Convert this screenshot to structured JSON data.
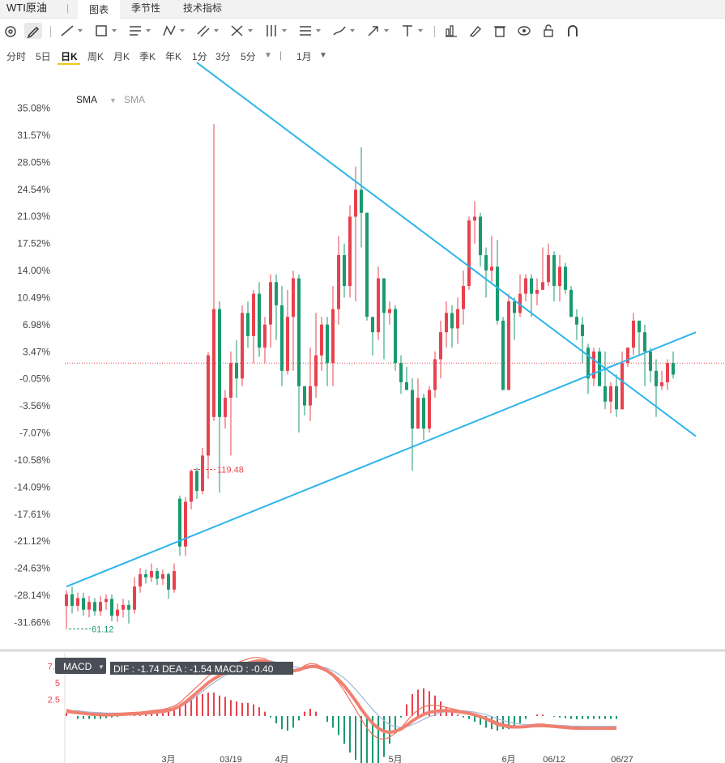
{
  "header": {
    "symbol": "WTI原油",
    "separator": "|",
    "tabs": [
      {
        "label": "图表",
        "active": true
      },
      {
        "label": "季节性",
        "active": false
      },
      {
        "label": "技术指标",
        "active": false
      }
    ]
  },
  "toolbar": {
    "tools": [
      "cursor-icon",
      "pencil-icon",
      "trend-line-icon",
      "rectangle-icon",
      "horizontal-lines-icon",
      "zigzag-icon",
      "parallel-channel-icon",
      "fork-icon",
      "vertical-lines-icon",
      "fib-levels-icon",
      "brush-icon",
      "arrow-icon",
      "text-icon",
      "bar-chart-icon",
      "edit-icon",
      "trash-icon",
      "eye-icon",
      "lock-icon",
      "magnet-icon"
    ]
  },
  "periods": {
    "items": [
      "分时",
      "5日",
      "日K",
      "周K",
      "月K",
      "季K",
      "年K",
      "1分",
      "3分",
      "5分"
    ],
    "active": "日K",
    "extra": "1月"
  },
  "indicator": {
    "sma_label": "SMA",
    "sma_secondary": "SMA"
  },
  "macd_panel": {
    "label": "MACD",
    "readout": "DIF : -1.74  DEA : -1.54  MACD : -0.40",
    "y_ticks": [
      "7.5",
      "5",
      "2.5"
    ],
    "colors": {
      "positive": "#e8424e",
      "negative": "#1a9a6e",
      "dif": "#f07060",
      "dea": "#a0b8d8",
      "thick": "#f08070"
    }
  },
  "chart_data": {
    "type": "candlestick",
    "y_axis_unit": "%",
    "y_ticks": [
      "35.08%",
      "31.57%",
      "28.05%",
      "24.54%",
      "21.03%",
      "17.52%",
      "14.00%",
      "10.49%",
      "6.98%",
      "3.47%",
      "-0.05%",
      "-3.56%",
      "-7.07%",
      "-10.58%",
      "-14.09%",
      "-17.61%",
      "-21.12%",
      "-24.63%",
      "-28.14%",
      "-31.66%"
    ],
    "ylim": [
      -33.6,
      39.0
    ],
    "x_labels": [
      {
        "label": "3月",
        "index": 18
      },
      {
        "label": "03/19",
        "index": 29
      },
      {
        "label": "4月",
        "index": 38
      },
      {
        "label": "5月",
        "index": 58
      },
      {
        "label": "6月",
        "index": 78
      },
      {
        "label": "06/12",
        "index": 86
      },
      {
        "label": "06/27",
        "index": 98
      }
    ],
    "max_label": {
      "text": "119.48",
      "index": 22
    },
    "min_label": {
      "text": "61.12",
      "index": 0
    },
    "reference_line_pct": 2.0,
    "trendlines": [
      {
        "from": [
          23,
          41.0
        ],
        "to": [
          111,
          -7.5
        ],
        "color": "#2eb5ec"
      },
      {
        "from": [
          0,
          -27.0
        ],
        "to": [
          111,
          6.0
        ],
        "color": "#2eb5ec"
      }
    ],
    "colors": {
      "up": "#e8424e",
      "down": "#1a9a6e"
    },
    "candles": [
      [
        -29.5,
        -28.0,
        -27.5,
        -32.5
      ],
      [
        -28.0,
        -29.5,
        -27.0,
        -30.5
      ],
      [
        -29.5,
        -28.5,
        -27.8,
        -30.2
      ],
      [
        -28.5,
        -30.0,
        -27.8,
        -30.8
      ],
      [
        -30.0,
        -29.0,
        -28.2,
        -31.0
      ],
      [
        -29.0,
        -30.2,
        -28.5,
        -30.8
      ],
      [
        -30.2,
        -29.0,
        -28.2,
        -30.8
      ],
      [
        -29.0,
        -28.6,
        -28.0,
        -30.0
      ],
      [
        -28.6,
        -30.8,
        -28.0,
        -31.5
      ],
      [
        -30.8,
        -30.0,
        -29.2,
        -31.6
      ],
      [
        -30.0,
        -29.4,
        -28.6,
        -31.0
      ],
      [
        -29.4,
        -30.0,
        -28.8,
        -31.8
      ],
      [
        -30.0,
        -27.0,
        -25.8,
        -30.5
      ],
      [
        -27.0,
        -25.4,
        -24.6,
        -27.8
      ],
      [
        -25.4,
        -25.8,
        -24.8,
        -26.6
      ],
      [
        -25.8,
        -25.0,
        -24.0,
        -26.4
      ],
      [
        -25.0,
        -26.0,
        -24.6,
        -26.8
      ],
      [
        -26.0,
        -25.4,
        -24.8,
        -26.8
      ],
      [
        -25.4,
        -27.4,
        -25.2,
        -28.6
      ],
      [
        -27.4,
        -25.0,
        -24.0,
        -27.8
      ],
      [
        -15.6,
        -21.8,
        -15.2,
        -23.0
      ],
      [
        -21.8,
        -16.0,
        -15.4,
        -23.0
      ],
      [
        -16.0,
        -12.0,
        -11.8,
        -17.0
      ],
      [
        -12.0,
        -14.6,
        -11.6,
        -15.6
      ],
      [
        -14.6,
        -10.0,
        -9.0,
        -15.0
      ],
      [
        -10.0,
        3.0,
        3.4,
        -13.0
      ],
      [
        -5.0,
        9.0,
        33.0,
        -5.5
      ],
      [
        9.0,
        -5.0,
        10.0,
        -14.8
      ],
      [
        -5.0,
        -2.5,
        -1.5,
        -6.5
      ],
      [
        -2.5,
        2.0,
        3.5,
        -10.0
      ],
      [
        2.0,
        0.0,
        5.0,
        -2.5
      ],
      [
        0.0,
        8.5,
        9.5,
        -1.0
      ],
      [
        8.5,
        5.5,
        10.0,
        4.0
      ],
      [
        5.5,
        11.0,
        11.5,
        2.0
      ],
      [
        11.0,
        4.0,
        12.5,
        2.8
      ],
      [
        4.0,
        7.0,
        8.0,
        2.0
      ],
      [
        7.0,
        12.5,
        13.5,
        4.0
      ],
      [
        12.5,
        9.5,
        13.5,
        5.0
      ],
      [
        9.5,
        1.0,
        12.0,
        -1.0
      ],
      [
        1.0,
        8.0,
        11.5,
        0.5
      ],
      [
        8.0,
        13.0,
        14.0,
        1.0
      ],
      [
        13.0,
        -1.0,
        13.5,
        -7.0
      ],
      [
        -1.0,
        -3.5,
        -1.0,
        -4.8
      ],
      [
        -3.5,
        -1.0,
        4.0,
        -5.5
      ],
      [
        -1.0,
        3.0,
        8.5,
        -2.5
      ],
      [
        3.0,
        7.0,
        8.0,
        1.0
      ],
      [
        7.0,
        2.0,
        8.0,
        -1.0
      ],
      [
        2.0,
        9.0,
        12.0,
        -1.0
      ],
      [
        9.0,
        16.0,
        18.5,
        7.0
      ],
      [
        16.0,
        12.0,
        17.5,
        10.5
      ],
      [
        12.0,
        21.0,
        22.5,
        10.5
      ],
      [
        21.0,
        24.5,
        27.5,
        10.0
      ],
      [
        24.5,
        21.5,
        30.0,
        17.0
      ],
      [
        21.5,
        8.0,
        21.5,
        7.5
      ],
      [
        8.0,
        6.0,
        7.0,
        3.0
      ],
      [
        6.0,
        13.0,
        14.5,
        5.0
      ],
      [
        13.0,
        8.5,
        13.0,
        2.5
      ],
      [
        8.5,
        9.0,
        10.0,
        7.0
      ],
      [
        9.0,
        2.0,
        9.5,
        1.0
      ],
      [
        2.0,
        -0.5,
        3.0,
        -2.0
      ],
      [
        -0.5,
        -1.5,
        1.5,
        -1.5
      ],
      [
        -1.5,
        -6.5,
        0.0,
        -12.0
      ],
      [
        -6.5,
        -2.5,
        0.0,
        -2.5
      ],
      [
        -2.5,
        -6.5,
        -2.0,
        -8.0
      ],
      [
        -6.5,
        -1.5,
        -1.0,
        -7.0
      ],
      [
        -1.5,
        2.5,
        3.5,
        -2.5
      ],
      [
        2.5,
        6.0,
        7.5,
        0.0
      ],
      [
        6.0,
        8.5,
        10.0,
        4.0
      ],
      [
        8.5,
        6.5,
        9.5,
        4.0
      ],
      [
        6.5,
        9.0,
        10.5,
        4.5
      ],
      [
        9.0,
        12.0,
        14.0,
        7.0
      ],
      [
        12.0,
        20.5,
        21.0,
        11.5
      ],
      [
        20.5,
        21.0,
        23.0,
        17.5
      ],
      [
        21.0,
        16.0,
        21.5,
        14.5
      ],
      [
        16.0,
        14.0,
        17.0,
        10.5
      ],
      [
        14.0,
        14.5,
        18.5,
        12.5
      ],
      [
        14.5,
        7.5,
        18.0,
        7.0
      ],
      [
        7.5,
        -1.5,
        8.0,
        -1.5
      ],
      [
        -1.5,
        10.0,
        11.0,
        7.0
      ],
      [
        10.0,
        8.5,
        10.5,
        5.0
      ],
      [
        8.5,
        11.0,
        13.5,
        8.0
      ],
      [
        11.0,
        13.0,
        13.5,
        10.0
      ],
      [
        13.0,
        11.0,
        13.5,
        8.0
      ],
      [
        11.0,
        11.5,
        13.0,
        9.5
      ],
      [
        11.5,
        12.5,
        17.0,
        11.5
      ],
      [
        12.5,
        16.0,
        17.5,
        12.0
      ],
      [
        16.0,
        12.0,
        16.5,
        10.0
      ],
      [
        12.0,
        14.5,
        16.0,
        10.0
      ],
      [
        14.5,
        11.5,
        15.0,
        11.0
      ],
      [
        11.5,
        8.0,
        12.0,
        8.0
      ],
      [
        8.0,
        7.0,
        9.0,
        5.0
      ],
      [
        7.0,
        5.5,
        8.0,
        2.0
      ],
      [
        4.0,
        0.0,
        4.5,
        -2.0
      ],
      [
        0.0,
        3.5,
        4.0,
        -1.0
      ],
      [
        3.5,
        -1.0,
        4.0,
        -1.0
      ],
      [
        -1.0,
        -3.0,
        3.5,
        -4.0
      ],
      [
        -3.0,
        -1.0,
        -0.5,
        -4.5
      ],
      [
        -1.0,
        -4.0,
        0.5,
        -5.0
      ],
      [
        -4.0,
        2.0,
        3.5,
        -4.0
      ],
      [
        2.0,
        4.0,
        4.0,
        1.5
      ],
      [
        4.0,
        7.5,
        8.5,
        3.0
      ],
      [
        7.5,
        6.0,
        7.5,
        3.0
      ],
      [
        6.0,
        3.5,
        7.0,
        -1.0
      ],
      [
        3.5,
        1.0,
        4.0,
        -0.5
      ],
      [
        1.0,
        -1.0,
        2.5,
        -5.0
      ],
      [
        -1.0,
        -0.5,
        1.0,
        -1.5
      ],
      [
        -0.5,
        2.0,
        2.5,
        -1.5
      ],
      [
        2.0,
        0.5,
        3.5,
        0.0
      ]
    ],
    "macd": {
      "dif": [
        1.0,
        0.8,
        0.6,
        0.5,
        0.4,
        0.35,
        0.3,
        0.3,
        0.35,
        0.4,
        0.45,
        0.5,
        0.55,
        0.6,
        0.7,
        0.8,
        0.9,
        1.0,
        1.2,
        1.5,
        2.0,
        2.8,
        3.6,
        4.4,
        5.2,
        6.0,
        6.6,
        7.0,
        7.4,
        7.7,
        8.0,
        8.3,
        8.6,
        8.8,
        8.8,
        8.6,
        8.2,
        7.6,
        7.0,
        6.6,
        6.6,
        7.0,
        7.6,
        7.9,
        7.8,
        7.4,
        6.8,
        6.0,
        5.0,
        3.8,
        2.4,
        1.0,
        -0.5,
        -1.8,
        -2.8,
        -3.4,
        -3.5,
        -3.2,
        -2.6,
        -1.8,
        -0.8,
        0.2,
        0.9,
        1.4,
        1.6,
        1.6,
        1.5,
        1.3,
        1.1,
        0.9,
        0.7,
        0.5,
        0.2,
        -0.2,
        -0.6,
        -1.0,
        -1.4,
        -1.6,
        -1.8,
        -1.8,
        -1.7,
        -1.5,
        -1.3,
        -1.2,
        -1.2,
        -1.3,
        -1.4,
        -1.5,
        -1.6,
        -1.7,
        -1.75,
        -1.74,
        -1.74,
        -1.74,
        -1.74,
        -1.74,
        -1.74,
        -1.74
      ],
      "dea": [
        0.8,
        0.8,
        0.8,
        0.7,
        0.6,
        0.55,
        0.5,
        0.45,
        0.45,
        0.45,
        0.45,
        0.5,
        0.5,
        0.55,
        0.6,
        0.65,
        0.7,
        0.8,
        0.9,
        1.1,
        1.4,
        1.8,
        2.4,
        3.0,
        3.7,
        4.4,
        5.0,
        5.6,
        6.1,
        6.6,
        7.0,
        7.4,
        7.7,
        8.0,
        8.2,
        8.3,
        8.3,
        8.1,
        7.9,
        7.6,
        7.4,
        7.3,
        7.3,
        7.4,
        7.5,
        7.4,
        7.2,
        6.8,
        6.3,
        5.7,
        4.9,
        4.0,
        3.0,
        2.0,
        1.0,
        0.1,
        -0.7,
        -1.3,
        -1.6,
        -1.7,
        -1.6,
        -1.3,
        -0.9,
        -0.5,
        -0.1,
        0.2,
        0.5,
        0.7,
        0.8,
        0.8,
        0.8,
        0.7,
        0.6,
        0.4,
        0.2,
        -0.1,
        -0.4,
        -0.7,
        -0.9,
        -1.1,
        -1.2,
        -1.3,
        -1.3,
        -1.3,
        -1.3,
        -1.3,
        -1.35,
        -1.4,
        -1.45,
        -1.5,
        -1.52,
        -1.54,
        -1.54,
        -1.54,
        -1.54,
        -1.54,
        -1.54,
        -1.54
      ]
    }
  }
}
